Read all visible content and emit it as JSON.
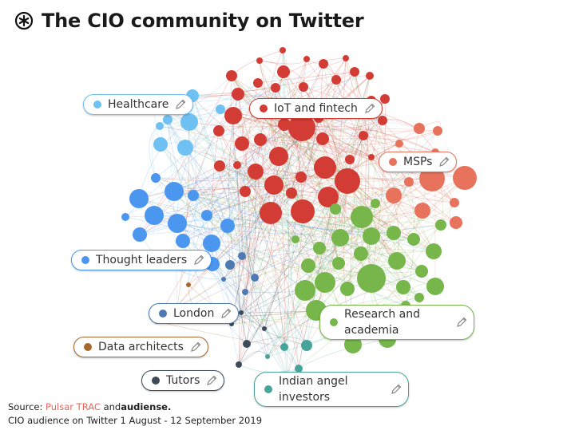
{
  "title": "The CIO community on Twitter",
  "footer": {
    "source_prefix": "Source: ",
    "source_brand": "Pulsar TRAC",
    "source_and": " and",
    "audiense": "audiense.",
    "caption": "CIO audience on Twitter 1 August - 12 September 2019"
  },
  "clusters": [
    {
      "label": "Healthcare",
      "color": "#6ec1f2",
      "border": "#6ec1f2"
    },
    {
      "label": "IoT and fintech",
      "color": "#d23c34",
      "border": "#d23c34"
    },
    {
      "label": "MSPs",
      "color": "#e8735d",
      "border": "#e8735d"
    },
    {
      "label": "Thought leaders",
      "color": "#4b96ef",
      "border": "#4b96ef"
    },
    {
      "label": "London",
      "color": "#4d7ab0",
      "border": "#4d7ab0"
    },
    {
      "label": "Research and academia",
      "color": "#76b64a",
      "border": "#76b64a"
    },
    {
      "label": "Data architects",
      "color": "#a5692f",
      "border": "#a5692f"
    },
    {
      "label": "Tutors",
      "color": "#3c4a5a",
      "border": "#3c4a5a"
    },
    {
      "label": "Indian angel investors",
      "color": "#47a49a",
      "border": "#47a49a"
    }
  ],
  "icons": {
    "title": "asterisk-circle-icon",
    "edit": "pencil-icon"
  }
}
